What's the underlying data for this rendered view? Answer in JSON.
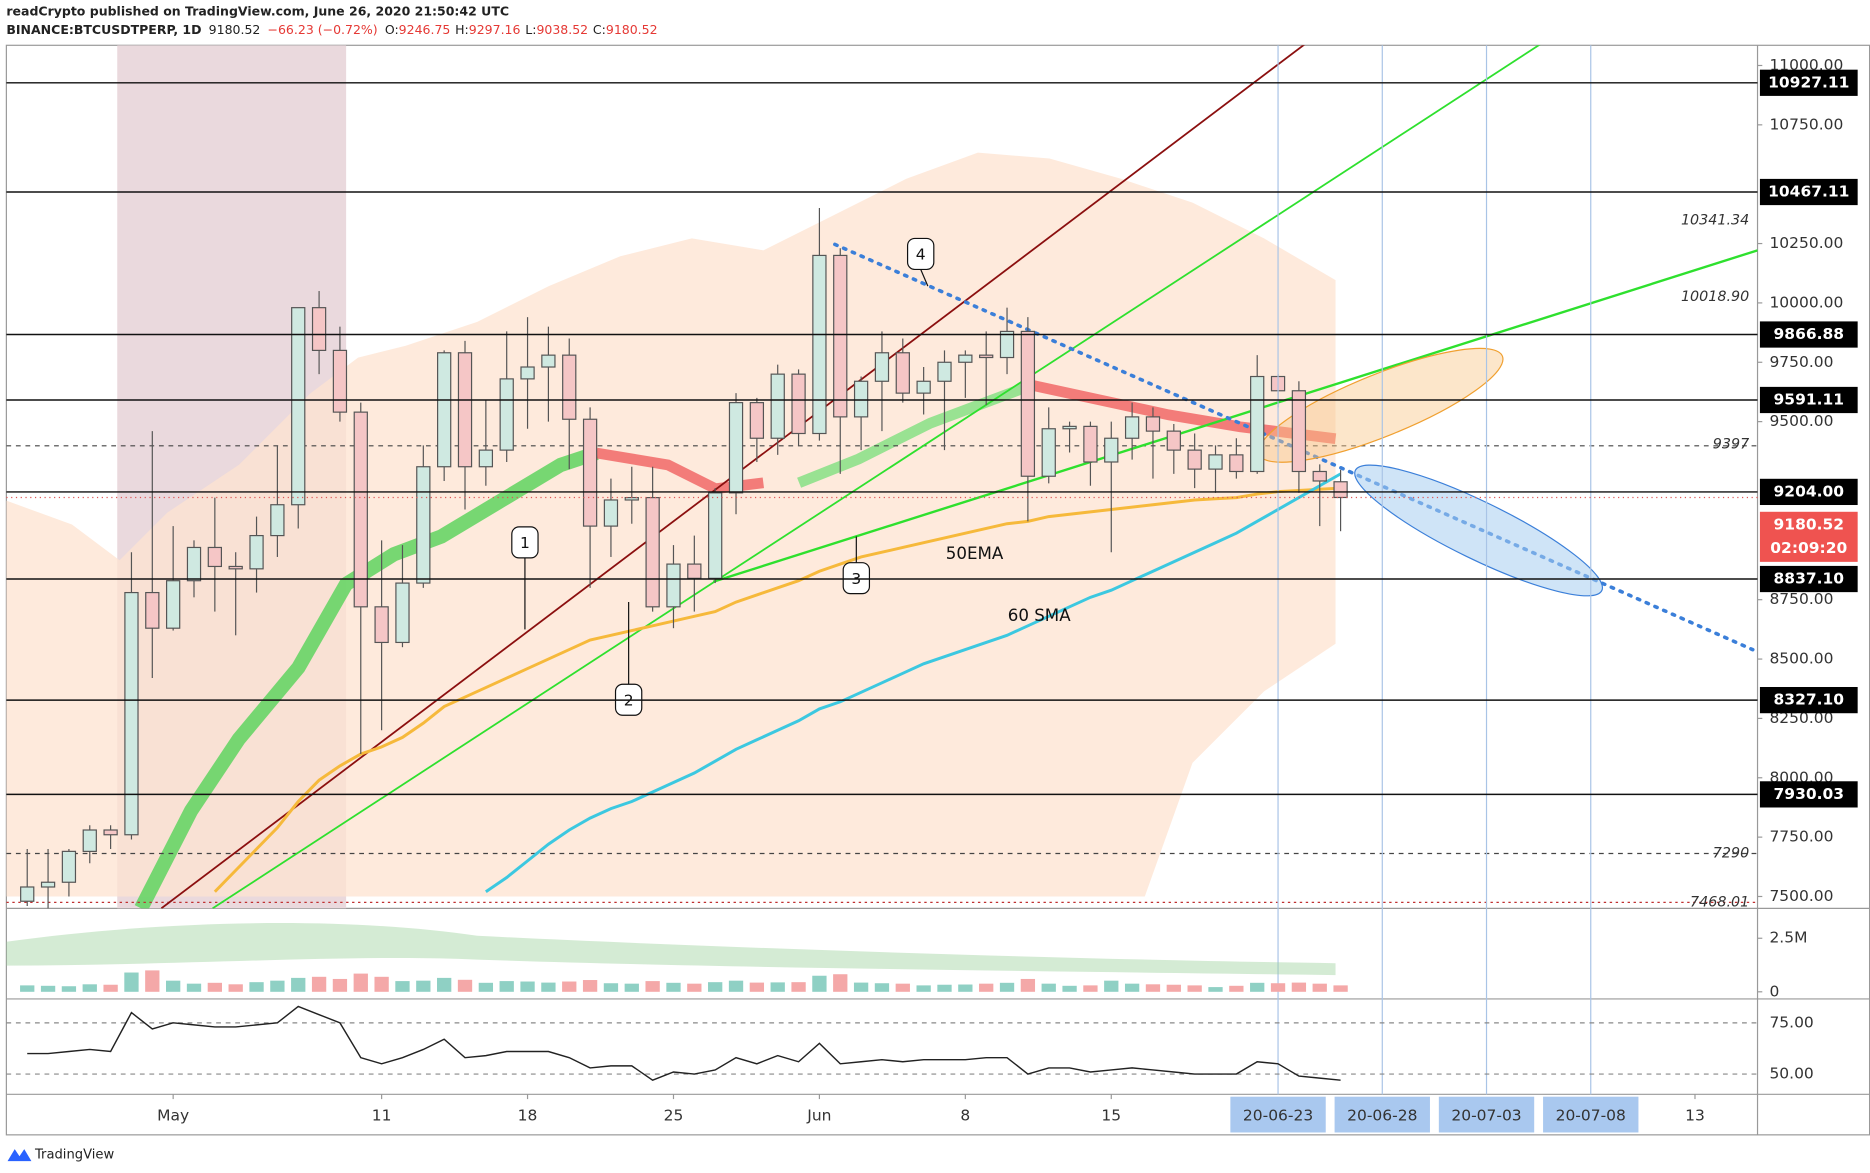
{
  "header": {
    "publisher": "readCrypto published on TradingView.com, June 26, 2020 21:50:42 UTC",
    "symbol": "BINANCE:BTCUSDTPERP, 1D",
    "last": "9180.52",
    "change": "−66.23 (−0.72%)",
    "ohlc": [
      {
        "label": "O:",
        "value": "9246.75"
      },
      {
        "label": "H:",
        "value": "9297.16"
      },
      {
        "label": "L:",
        "value": "9038.52"
      },
      {
        "label": "C:",
        "value": "9180.52"
      }
    ]
  },
  "chart_data": {
    "type": "candlestick",
    "categories": [
      "20-04-24",
      "20-04-25",
      "20-04-26",
      "20-04-27",
      "20-04-28",
      "20-04-29",
      "20-04-30",
      "20-05-01",
      "20-05-02",
      "20-05-03",
      "20-05-04",
      "20-05-05",
      "20-05-06",
      "20-05-07",
      "20-05-08",
      "20-05-09",
      "20-05-10",
      "20-05-11",
      "20-05-12",
      "20-05-13",
      "20-05-14",
      "20-05-15",
      "20-05-16",
      "20-05-17",
      "20-05-18",
      "20-05-19",
      "20-05-20",
      "20-05-21",
      "20-05-22",
      "20-05-23",
      "20-05-24",
      "20-05-25",
      "20-05-26",
      "20-05-27",
      "20-05-28",
      "20-05-29",
      "20-05-30",
      "20-05-31",
      "20-06-01",
      "20-06-02",
      "20-06-03",
      "20-06-04",
      "20-06-05",
      "20-06-06",
      "20-06-07",
      "20-06-08",
      "20-06-09",
      "20-06-10",
      "20-06-11",
      "20-06-12",
      "20-06-13",
      "20-06-14",
      "20-06-15",
      "20-06-16",
      "20-06-17",
      "20-06-18",
      "20-06-19",
      "20-06-20",
      "20-06-21",
      "20-06-22",
      "20-06-23",
      "20-06-24",
      "20-06-25",
      "20-06-26"
    ],
    "open": [
      7480,
      7540,
      7560,
      7690,
      7780,
      7760,
      8780,
      8630,
      8830,
      8970,
      8890,
      8880,
      9020,
      9150,
      9980,
      9800,
      9540,
      8720,
      8570,
      8820,
      9310,
      9790,
      9310,
      9380,
      9680,
      9730,
      9780,
      9510,
      9060,
      9170,
      9180,
      8720,
      8900,
      8840,
      9200,
      9580,
      9430,
      9700,
      9450,
      10200,
      9520,
      9670,
      9790,
      9620,
      9670,
      9750,
      9780,
      9770,
      9880,
      9270,
      9470,
      9480,
      9330,
      9430,
      9520,
      9460,
      9380,
      9300,
      9360,
      9290,
      9690,
      9630,
      9290,
      9246.75
    ],
    "high": [
      7700,
      7700,
      7700,
      7800,
      7800,
      8950,
      9460,
      9060,
      9000,
      9180,
      8950,
      9100,
      9400,
      9950,
      10050,
      9900,
      9580,
      9000,
      8980,
      9400,
      9800,
      9840,
      9590,
      9880,
      9940,
      9900,
      9850,
      9560,
      9260,
      9310,
      9310,
      8980,
      9020,
      9220,
      9620,
      9600,
      9740,
      9720,
      10400,
      10230,
      9690,
      9880,
      9850,
      9730,
      9800,
      9800,
      9880,
      9980,
      9940,
      9560,
      9500,
      9500,
      9500,
      9580,
      9560,
      9490,
      9450,
      9400,
      9430,
      9780,
      9700,
      9670,
      9320,
      9297.16
    ],
    "low": [
      7460,
      7450,
      7500,
      7640,
      7700,
      7740,
      8420,
      8620,
      8760,
      8700,
      8600,
      8780,
      8930,
      9050,
      9700,
      9500,
      8100,
      8200,
      8550,
      8800,
      9250,
      9130,
      9230,
      9330,
      9470,
      9500,
      9300,
      8800,
      8930,
      9070,
      8700,
      8630,
      8700,
      8820,
      9110,
      9330,
      9360,
      9400,
      9420,
      9280,
      9380,
      9460,
      9580,
      9530,
      9380,
      9600,
      9570,
      9700,
      9080,
      9240,
      9370,
      9230,
      8950,
      9340,
      9260,
      9280,
      9220,
      9200,
      9260,
      9280,
      9560,
      9200,
      9060,
      9038.52
    ],
    "close": [
      7540,
      7560,
      7690,
      7780,
      7760,
      8780,
      8630,
      8830,
      8970,
      8890,
      8880,
      9020,
      9150,
      9980,
      9800,
      9540,
      8720,
      8570,
      8820,
      9310,
      9790,
      9310,
      9380,
      9680,
      9730,
      9780,
      9510,
      9060,
      9170,
      9180,
      8720,
      8900,
      8840,
      9200,
      9580,
      9430,
      9700,
      9450,
      10200,
      9520,
      9670,
      9790,
      9620,
      9670,
      9750,
      9780,
      9770,
      9880,
      9270,
      9470,
      9480,
      9330,
      9430,
      9520,
      9460,
      9380,
      9300,
      9360,
      9290,
      9690,
      9630,
      9290,
      9250,
      9180.52
    ],
    "up_color": "#cfe9e1",
    "down_color": "#f5c6c6",
    "ylim": [
      7450,
      11085
    ],
    "yticks": [
      {
        "value": 11000,
        "label": "11000.00"
      },
      {
        "value": 10750,
        "label": "10750.00"
      },
      {
        "value": 10250,
        "label": "10250.00"
      },
      {
        "value": 10000,
        "label": "10000.00"
      },
      {
        "value": 9750,
        "label": "9750.00"
      },
      {
        "value": 9500,
        "label": "9500.00"
      },
      {
        "value": 8750,
        "label": "8750.00"
      },
      {
        "value": 8500,
        "label": "8500.00"
      },
      {
        "value": 8250,
        "label": "8250.00"
      },
      {
        "value": 8000,
        "label": "8000.00"
      },
      {
        "value": 7750,
        "label": "7750.00"
      },
      {
        "value": 7500,
        "label": "7500.00"
      }
    ],
    "xlim": [
      "20-04-23",
      "20-07-16"
    ],
    "xticks": [
      {
        "value": "20-05-01",
        "label": "May"
      },
      {
        "value": "20-05-11",
        "label": "11"
      },
      {
        "value": "20-05-18",
        "label": "18"
      },
      {
        "value": "20-05-25",
        "label": "25"
      },
      {
        "value": "20-06-01",
        "label": "Jun"
      },
      {
        "value": "20-06-08",
        "label": "8"
      },
      {
        "value": "20-06-15",
        "label": "15"
      },
      "20-06-23",
      "20-06-28",
      "20-07-03",
      "20-07-08",
      {
        "value": "20-07-13",
        "label": "13"
      }
    ],
    "levels": [
      10927.11,
      10467.11,
      9866.88,
      9591.11,
      {
        "value": 9204,
        "label": "9204.00"
      },
      {
        "value": 8837.1,
        "label": "8837.10"
      },
      {
        "value": 8327.1,
        "label": "8327.10"
      },
      7930.03
    ],
    "countdown": "02:09:20",
    "price_notes": [
      "10341.34",
      "10018.90",
      "9397",
      "7290",
      "7468.01"
    ],
    "overlays": [
      {
        "name": "50EMA",
        "color": "#f6b93b",
        "values": [
          null,
          null,
          null,
          null,
          null,
          null,
          null,
          null,
          null,
          7520,
          7610,
          7700,
          7790,
          7900,
          7990,
          8050,
          8100,
          8130,
          8170,
          8230,
          8300,
          8340,
          8380,
          8420,
          8460,
          8500,
          8540,
          8580,
          8600,
          8620,
          8640,
          8660,
          8680,
          8700,
          8740,
          8770,
          8800,
          8830,
          8870,
          8900,
          8930,
          8950,
          8970,
          8990,
          9010,
          9030,
          9050,
          9070,
          9080,
          9100,
          9110,
          9120,
          9130,
          9140,
          9150,
          9160,
          9170,
          9175,
          9180,
          9195,
          9205,
          9210,
          9215,
          9220
        ]
      },
      {
        "name": "60 SMA",
        "color": "#3cc8e0",
        "values": [
          null,
          null,
          null,
          null,
          null,
          null,
          null,
          null,
          null,
          null,
          null,
          null,
          null,
          null,
          null,
          null,
          null,
          null,
          null,
          null,
          null,
          null,
          7520,
          7580,
          7650,
          7720,
          7780,
          7830,
          7870,
          7900,
          7940,
          7980,
          8020,
          8070,
          8120,
          8160,
          8200,
          8240,
          8290,
          8320,
          8360,
          8400,
          8440,
          8480,
          8510,
          8540,
          8570,
          8600,
          8640,
          8680,
          8720,
          8760,
          8790,
          8830,
          8870,
          8910,
          8950,
          8990,
          9030,
          9080,
          9130,
          9180,
          9230,
          9280
        ]
      }
    ],
    "annotations": [
      "1",
      "2",
      "3",
      "4"
    ],
    "volume": {
      "values": [
        300000,
        280000,
        260000,
        350000,
        330000,
        900000,
        1000000,
        520000,
        380000,
        420000,
        350000,
        450000,
        520000,
        650000,
        700000,
        600000,
        850000,
        700000,
        500000,
        520000,
        650000,
        560000,
        420000,
        500000,
        480000,
        430000,
        480000,
        550000,
        400000,
        380000,
        500000,
        420000,
        380000,
        450000,
        520000,
        430000,
        440000,
        450000,
        750000,
        820000,
        430000,
        400000,
        380000,
        300000,
        330000,
        340000,
        380000,
        420000,
        600000,
        380000,
        280000,
        300000,
        520000,
        380000,
        350000,
        330000,
        300000,
        220000,
        280000,
        420000,
        400000,
        430000,
        380000,
        300000
      ],
      "ylim": [
        0,
        3450000
      ],
      "yticks": [
        {
          "value": 2500000,
          "label": "2.5M"
        },
        0
      ]
    },
    "rsi": {
      "color": "#222222",
      "values": [
        60,
        60,
        61,
        62,
        61,
        80,
        72,
        75,
        74,
        73,
        73,
        74,
        75,
        83,
        79,
        75,
        58,
        55,
        58,
        62,
        67,
        58,
        59,
        61,
        61,
        61,
        58,
        53,
        54,
        54,
        47,
        51,
        50,
        52,
        58,
        55,
        59,
        56,
        65,
        55,
        56,
        57,
        56,
        57,
        57,
        57,
        58,
        58,
        50,
        53,
        53,
        51,
        52,
        53,
        52,
        51,
        50,
        50,
        50,
        56,
        55,
        49,
        48,
        47
      ],
      "ylim": [
        40.1,
        85.5
      ],
      "yticks": [
        {
          "value": 75,
          "label": "75.00"
        },
        {
          "value": 50,
          "label": "50.00"
        }
      ]
    }
  },
  "footer": {
    "brand": "TradingView"
  }
}
